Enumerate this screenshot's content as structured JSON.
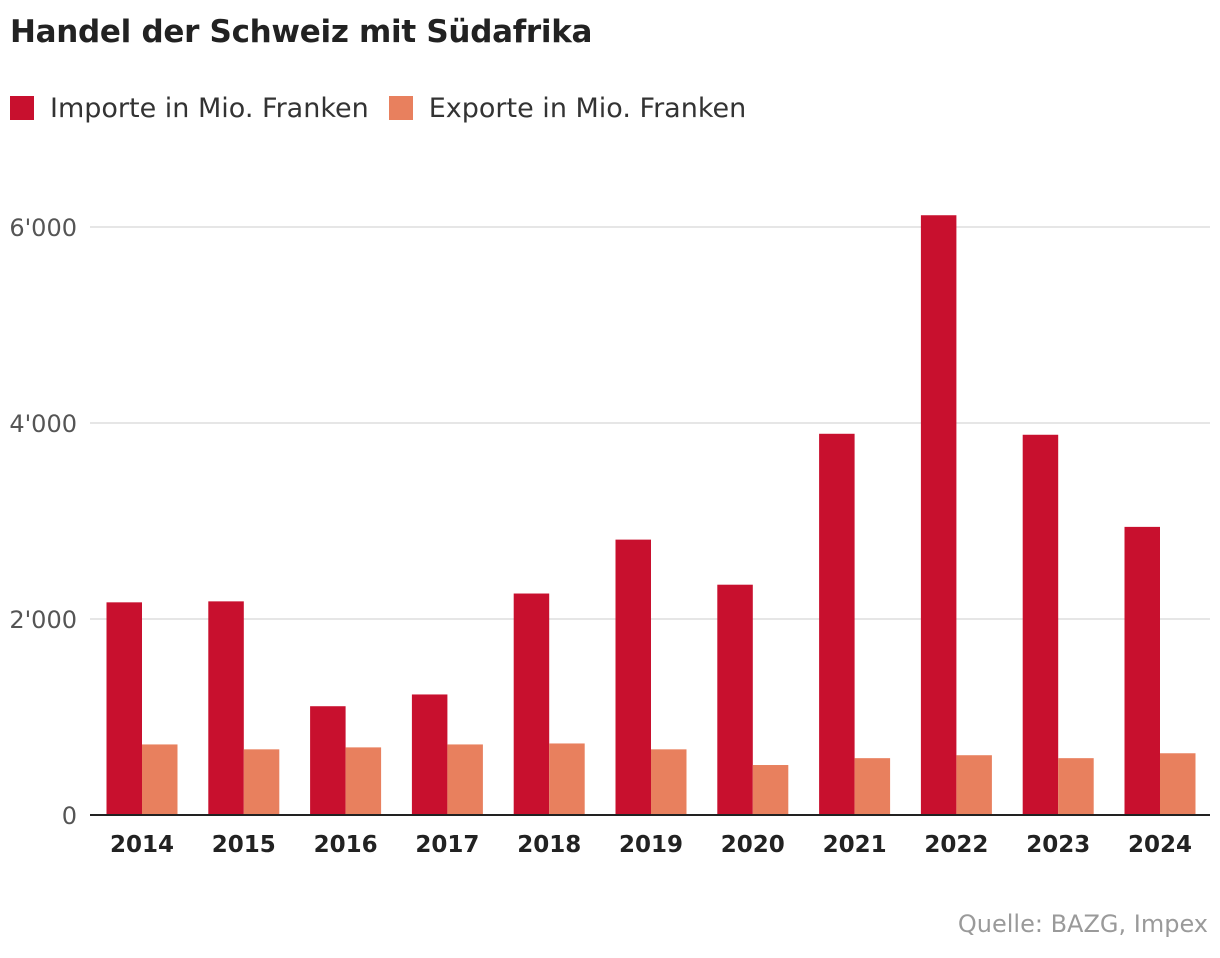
{
  "title": "Handel der Schweiz mit Südafrika",
  "source": "Quelle: BAZG, Impex",
  "colors": {
    "imports": "#c8102e",
    "exports": "#e8805e",
    "grid": "#dddddd",
    "axis": "#222222"
  },
  "chart_data": {
    "type": "bar",
    "title": "Handel der Schweiz mit Südafrika",
    "xlabel": "",
    "ylabel": "",
    "categories": [
      "2014",
      "2015",
      "2016",
      "2017",
      "2018",
      "2019",
      "2020",
      "2021",
      "2022",
      "2023",
      "2024"
    ],
    "series": [
      {
        "name": "Importe in Mio. Franken",
        "color": "#c8102e",
        "values": [
          2170,
          2180,
          1110,
          1230,
          2260,
          2810,
          2350,
          3890,
          6120,
          3880,
          2940
        ]
      },
      {
        "name": "Exporte in Mio. Franken",
        "color": "#e8805e",
        "values": [
          720,
          670,
          690,
          720,
          730,
          670,
          510,
          580,
          610,
          580,
          630
        ]
      }
    ],
    "yticks": [
      0,
      2000,
      4000,
      6000
    ],
    "ytick_labels": [
      "0",
      "2'000",
      "4'000",
      "6'000"
    ],
    "ylim": [
      0,
      6000
    ],
    "grid": true,
    "legend": "top-left"
  }
}
